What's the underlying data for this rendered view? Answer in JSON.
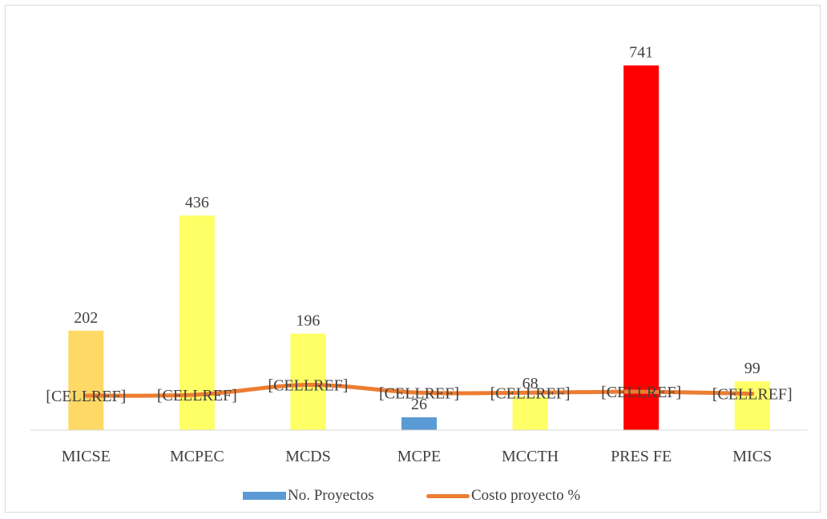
{
  "chart_data": {
    "type": "bar",
    "categories": [
      "MICSE",
      "MCPEC",
      "MCDS",
      "MCPE",
      "MCCTH",
      "PRES FE",
      "MICS"
    ],
    "series": [
      {
        "name": "No. Proyectos",
        "type": "bar",
        "values": [
          202,
          436,
          196,
          26,
          68,
          741,
          99
        ],
        "data_labels": [
          "202",
          "436",
          "196",
          "26",
          "68",
          "741",
          "99"
        ],
        "colors": [
          "#FFD966",
          "#FFFF66",
          "#FFFF66",
          "#5B9BD5",
          "#FFFF66",
          "#FF0000",
          "#FFFF66"
        ],
        "legend_color": "#5B9BD5"
      },
      {
        "name": "Costo proyecto %",
        "type": "line",
        "values": [
          70,
          72,
          92,
          76,
          76,
          78,
          74
        ],
        "data_labels": [
          "[CELLREF]",
          "[CELLREF]",
          "[CELLREF]",
          "[CELLREF]",
          "[CELLREF]",
          "[CELLREF]",
          "[CELLREF]"
        ],
        "color": "#ED7D31"
      }
    ],
    "ylim": [
      0,
      800
    ],
    "grid": false,
    "legend_position": "bottom"
  }
}
